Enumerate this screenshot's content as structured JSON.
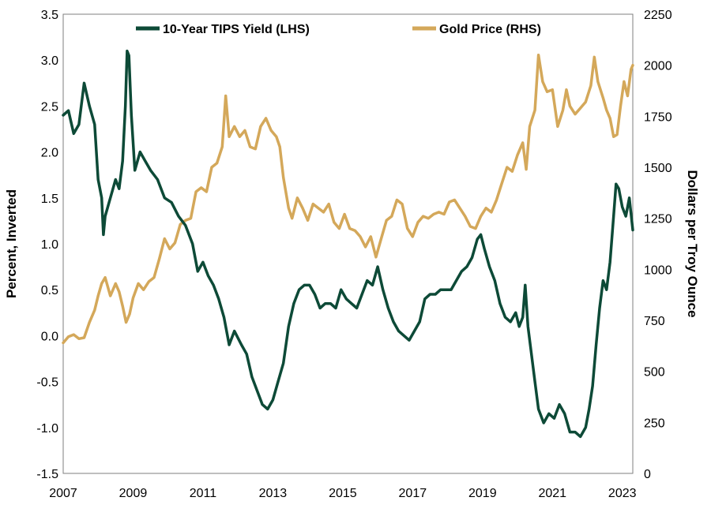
{
  "chart_data": {
    "type": "line",
    "title": "",
    "xlabel": "",
    "ylabel_left": "Percent, Inverted",
    "ylabel_right": "Dollars per Troy Ounce",
    "xlim": [
      2007,
      2023.3
    ],
    "ylim_left": [
      3.5,
      -1.5
    ],
    "ylim_right": [
      0,
      2250
    ],
    "left_axis_inverted": true,
    "x_ticks": [
      2007,
      2009,
      2011,
      2013,
      2015,
      2017,
      2019,
      2021,
      2023
    ],
    "x_tick_labels": [
      "2007",
      "2009",
      "2011",
      "2013",
      "2015",
      "2017",
      "2019",
      "2021",
      "2023"
    ],
    "y_left_ticks": [
      -1.5,
      -1.0,
      -0.5,
      0.0,
      0.5,
      1.0,
      1.5,
      2.0,
      2.5,
      3.0,
      3.5
    ],
    "y_left_tick_labels": [
      "-1.5",
      "-1.0",
      "-0.5",
      "0.0",
      "0.5",
      "1.0",
      "1.5",
      "2.0",
      "2.5",
      "3.0",
      "3.5"
    ],
    "y_right_ticks": [
      0,
      250,
      500,
      750,
      1000,
      1250,
      1500,
      1750,
      2000,
      2250
    ],
    "y_right_tick_labels": [
      "0",
      "250",
      "500",
      "750",
      "1000",
      "1250",
      "1500",
      "1750",
      "2000",
      "2250"
    ],
    "grid": false,
    "legend_position": "top-center",
    "series": [
      {
        "name": "10-Year TIPS Yield (LHS)",
        "axis": "left",
        "color": "#0d4a37",
        "points": [
          [
            2007.0,
            2.4
          ],
          [
            2007.15,
            2.45
          ],
          [
            2007.3,
            2.2
          ],
          [
            2007.45,
            2.3
          ],
          [
            2007.6,
            2.75
          ],
          [
            2007.75,
            2.5
          ],
          [
            2007.9,
            2.3
          ],
          [
            2008.0,
            1.7
          ],
          [
            2008.1,
            1.5
          ],
          [
            2008.15,
            1.1
          ],
          [
            2008.2,
            1.3
          ],
          [
            2008.35,
            1.5
          ],
          [
            2008.5,
            1.7
          ],
          [
            2008.6,
            1.6
          ],
          [
            2008.7,
            1.9
          ],
          [
            2008.78,
            2.5
          ],
          [
            2008.83,
            3.1
          ],
          [
            2008.88,
            3.05
          ],
          [
            2008.95,
            2.4
          ],
          [
            2009.05,
            1.8
          ],
          [
            2009.2,
            2.0
          ],
          [
            2009.35,
            1.9
          ],
          [
            2009.5,
            1.8
          ],
          [
            2009.7,
            1.7
          ],
          [
            2009.9,
            1.5
          ],
          [
            2010.1,
            1.45
          ],
          [
            2010.3,
            1.3
          ],
          [
            2010.5,
            1.2
          ],
          [
            2010.7,
            1.0
          ],
          [
            2010.85,
            0.7
          ],
          [
            2011.0,
            0.8
          ],
          [
            2011.15,
            0.65
          ],
          [
            2011.3,
            0.55
          ],
          [
            2011.45,
            0.4
          ],
          [
            2011.6,
            0.2
          ],
          [
            2011.75,
            -0.1
          ],
          [
            2011.9,
            0.05
          ],
          [
            2012.1,
            -0.1
          ],
          [
            2012.25,
            -0.2
          ],
          [
            2012.4,
            -0.45
          ],
          [
            2012.55,
            -0.6
          ],
          [
            2012.7,
            -0.75
          ],
          [
            2012.85,
            -0.8
          ],
          [
            2013.0,
            -0.7
          ],
          [
            2013.15,
            -0.5
          ],
          [
            2013.3,
            -0.3
          ],
          [
            2013.45,
            0.1
          ],
          [
            2013.6,
            0.35
          ],
          [
            2013.75,
            0.5
          ],
          [
            2013.9,
            0.55
          ],
          [
            2014.05,
            0.55
          ],
          [
            2014.2,
            0.45
          ],
          [
            2014.35,
            0.3
          ],
          [
            2014.5,
            0.35
          ],
          [
            2014.65,
            0.35
          ],
          [
            2014.8,
            0.3
          ],
          [
            2014.95,
            0.5
          ],
          [
            2015.1,
            0.4
          ],
          [
            2015.25,
            0.35
          ],
          [
            2015.4,
            0.3
          ],
          [
            2015.55,
            0.45
          ],
          [
            2015.7,
            0.6
          ],
          [
            2015.85,
            0.55
          ],
          [
            2016.0,
            0.75
          ],
          [
            2016.15,
            0.5
          ],
          [
            2016.3,
            0.3
          ],
          [
            2016.45,
            0.15
          ],
          [
            2016.6,
            0.05
          ],
          [
            2016.75,
            0.0
          ],
          [
            2016.9,
            -0.05
          ],
          [
            2017.05,
            0.05
          ],
          [
            2017.2,
            0.15
          ],
          [
            2017.35,
            0.4
          ],
          [
            2017.5,
            0.45
          ],
          [
            2017.65,
            0.45
          ],
          [
            2017.8,
            0.5
          ],
          [
            2017.95,
            0.5
          ],
          [
            2018.1,
            0.5
          ],
          [
            2018.25,
            0.6
          ],
          [
            2018.4,
            0.7
          ],
          [
            2018.55,
            0.75
          ],
          [
            2018.7,
            0.85
          ],
          [
            2018.85,
            1.05
          ],
          [
            2018.95,
            1.1
          ],
          [
            2019.05,
            0.95
          ],
          [
            2019.2,
            0.75
          ],
          [
            2019.35,
            0.6
          ],
          [
            2019.5,
            0.35
          ],
          [
            2019.65,
            0.2
          ],
          [
            2019.8,
            0.15
          ],
          [
            2019.95,
            0.25
          ],
          [
            2020.05,
            0.1
          ],
          [
            2020.15,
            0.2
          ],
          [
            2020.22,
            0.55
          ],
          [
            2020.3,
            0.1
          ],
          [
            2020.4,
            -0.2
          ],
          [
            2020.5,
            -0.5
          ],
          [
            2020.6,
            -0.8
          ],
          [
            2020.75,
            -0.95
          ],
          [
            2020.9,
            -0.85
          ],
          [
            2021.05,
            -0.9
          ],
          [
            2021.2,
            -0.75
          ],
          [
            2021.35,
            -0.85
          ],
          [
            2021.5,
            -1.05
          ],
          [
            2021.65,
            -1.05
          ],
          [
            2021.8,
            -1.1
          ],
          [
            2021.95,
            -1.0
          ],
          [
            2022.05,
            -0.8
          ],
          [
            2022.15,
            -0.55
          ],
          [
            2022.25,
            -0.1
          ],
          [
            2022.35,
            0.3
          ],
          [
            2022.45,
            0.6
          ],
          [
            2022.55,
            0.5
          ],
          [
            2022.65,
            0.8
          ],
          [
            2022.75,
            1.3
          ],
          [
            2022.82,
            1.65
          ],
          [
            2022.9,
            1.6
          ],
          [
            2023.0,
            1.4
          ],
          [
            2023.1,
            1.3
          ],
          [
            2023.2,
            1.5
          ],
          [
            2023.3,
            1.15
          ]
        ]
      },
      {
        "name": "Gold Price (RHS)",
        "axis": "right",
        "color": "#d4a85a",
        "points": [
          [
            2007.0,
            640
          ],
          [
            2007.15,
            670
          ],
          [
            2007.3,
            680
          ],
          [
            2007.45,
            660
          ],
          [
            2007.6,
            665
          ],
          [
            2007.75,
            740
          ],
          [
            2007.9,
            800
          ],
          [
            2008.0,
            870
          ],
          [
            2008.1,
            930
          ],
          [
            2008.2,
            960
          ],
          [
            2008.35,
            870
          ],
          [
            2008.5,
            930
          ],
          [
            2008.6,
            890
          ],
          [
            2008.7,
            820
          ],
          [
            2008.8,
            740
          ],
          [
            2008.9,
            780
          ],
          [
            2009.0,
            860
          ],
          [
            2009.15,
            930
          ],
          [
            2009.3,
            900
          ],
          [
            2009.45,
            940
          ],
          [
            2009.6,
            960
          ],
          [
            2009.75,
            1050
          ],
          [
            2009.9,
            1150
          ],
          [
            2010.05,
            1100
          ],
          [
            2010.2,
            1130
          ],
          [
            2010.35,
            1220
          ],
          [
            2010.5,
            1240
          ],
          [
            2010.65,
            1250
          ],
          [
            2010.8,
            1380
          ],
          [
            2010.95,
            1400
          ],
          [
            2011.1,
            1380
          ],
          [
            2011.25,
            1500
          ],
          [
            2011.4,
            1520
          ],
          [
            2011.55,
            1600
          ],
          [
            2011.65,
            1850
          ],
          [
            2011.75,
            1650
          ],
          [
            2011.9,
            1700
          ],
          [
            2012.05,
            1650
          ],
          [
            2012.2,
            1680
          ],
          [
            2012.35,
            1600
          ],
          [
            2012.5,
            1590
          ],
          [
            2012.65,
            1700
          ],
          [
            2012.8,
            1740
          ],
          [
            2012.95,
            1680
          ],
          [
            2013.1,
            1650
          ],
          [
            2013.2,
            1600
          ],
          [
            2013.3,
            1450
          ],
          [
            2013.45,
            1300
          ],
          [
            2013.55,
            1250
          ],
          [
            2013.7,
            1350
          ],
          [
            2013.85,
            1300
          ],
          [
            2014.0,
            1240
          ],
          [
            2014.15,
            1320
          ],
          [
            2014.3,
            1300
          ],
          [
            2014.45,
            1280
          ],
          [
            2014.6,
            1320
          ],
          [
            2014.75,
            1230
          ],
          [
            2014.9,
            1200
          ],
          [
            2015.05,
            1270
          ],
          [
            2015.2,
            1200
          ],
          [
            2015.35,
            1190
          ],
          [
            2015.5,
            1160
          ],
          [
            2015.65,
            1110
          ],
          [
            2015.8,
            1160
          ],
          [
            2015.95,
            1060
          ],
          [
            2016.1,
            1150
          ],
          [
            2016.25,
            1240
          ],
          [
            2016.4,
            1260
          ],
          [
            2016.55,
            1340
          ],
          [
            2016.7,
            1320
          ],
          [
            2016.85,
            1200
          ],
          [
            2017.0,
            1160
          ],
          [
            2017.15,
            1230
          ],
          [
            2017.3,
            1260
          ],
          [
            2017.45,
            1250
          ],
          [
            2017.6,
            1270
          ],
          [
            2017.75,
            1280
          ],
          [
            2017.9,
            1270
          ],
          [
            2018.05,
            1330
          ],
          [
            2018.2,
            1340
          ],
          [
            2018.35,
            1300
          ],
          [
            2018.5,
            1260
          ],
          [
            2018.65,
            1210
          ],
          [
            2018.8,
            1200
          ],
          [
            2018.95,
            1260
          ],
          [
            2019.1,
            1300
          ],
          [
            2019.25,
            1280
          ],
          [
            2019.4,
            1340
          ],
          [
            2019.55,
            1420
          ],
          [
            2019.7,
            1500
          ],
          [
            2019.85,
            1480
          ],
          [
            2020.0,
            1560
          ],
          [
            2020.15,
            1620
          ],
          [
            2020.25,
            1490
          ],
          [
            2020.35,
            1700
          ],
          [
            2020.5,
            1780
          ],
          [
            2020.6,
            2050
          ],
          [
            2020.72,
            1920
          ],
          [
            2020.85,
            1870
          ],
          [
            2021.0,
            1880
          ],
          [
            2021.15,
            1700
          ],
          [
            2021.3,
            1780
          ],
          [
            2021.4,
            1880
          ],
          [
            2021.5,
            1800
          ],
          [
            2021.65,
            1760
          ],
          [
            2021.8,
            1790
          ],
          [
            2021.95,
            1820
          ],
          [
            2022.1,
            1900
          ],
          [
            2022.2,
            2040
          ],
          [
            2022.3,
            1920
          ],
          [
            2022.45,
            1840
          ],
          [
            2022.55,
            1780
          ],
          [
            2022.65,
            1740
          ],
          [
            2022.75,
            1650
          ],
          [
            2022.85,
            1660
          ],
          [
            2022.95,
            1800
          ],
          [
            2023.05,
            1920
          ],
          [
            2023.15,
            1850
          ],
          [
            2023.25,
            1980
          ],
          [
            2023.3,
            2000
          ]
        ]
      }
    ]
  }
}
